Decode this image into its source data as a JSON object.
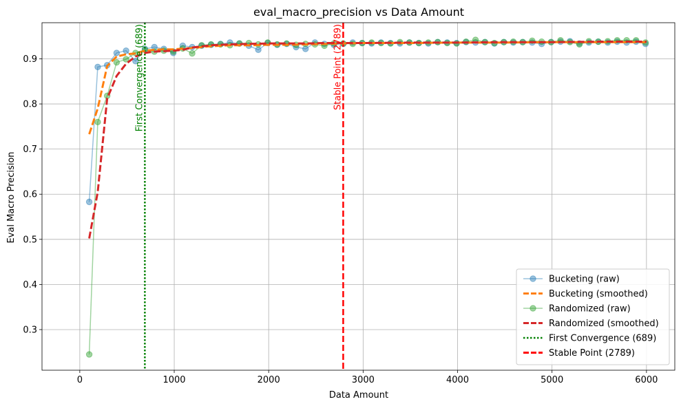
{
  "chart_data": {
    "type": "line",
    "title": "eval_macro_precision vs Data Amount",
    "xlabel": "Data Amount",
    "ylabel": "Eval Macro Precision",
    "xlim": [
      -400,
      6300
    ],
    "ylim": [
      0.21,
      0.98
    ],
    "xticks": [
      0,
      1000,
      2000,
      3000,
      4000,
      5000,
      6000
    ],
    "yticks": [
      0.3,
      0.4,
      0.5,
      0.6,
      0.7,
      0.8,
      0.9
    ],
    "xtick_labels": [
      "0",
      "1000",
      "2000",
      "3000",
      "4000",
      "5000",
      "6000"
    ],
    "ytick_labels": [
      "0.3",
      "0.4",
      "0.5",
      "0.6",
      "0.7",
      "0.8",
      "0.9"
    ],
    "grid": true,
    "legend_position": "lower-right",
    "series": [
      {
        "name": "Bucketing (raw)",
        "style": "line-marker",
        "color": "#1f77b4",
        "x": [
          100,
          190,
          290,
          390,
          490,
          590,
          690,
          790,
          890,
          990,
          1090,
          1190,
          1290,
          1390,
          1490,
          1590,
          1690,
          1790,
          1890,
          1990,
          2090,
          2190,
          2290,
          2390,
          2490,
          2590,
          2690,
          2790,
          2890,
          2990,
          3090,
          3190,
          3290,
          3390,
          3490,
          3590,
          3690,
          3790,
          3890,
          3990,
          4090,
          4190,
          4290,
          4390,
          4490,
          4590,
          4690,
          4790,
          4890,
          4990,
          5090,
          5190,
          5290,
          5390,
          5490,
          5590,
          5690,
          5790,
          5890,
          5990
        ],
        "y": [
          0.583,
          0.882,
          0.886,
          0.913,
          0.918,
          0.895,
          0.922,
          0.926,
          0.922,
          0.913,
          0.929,
          0.926,
          0.929,
          0.931,
          0.933,
          0.936,
          0.934,
          0.929,
          0.92,
          0.935,
          0.931,
          0.933,
          0.926,
          0.922,
          0.936,
          0.933,
          0.931,
          0.933,
          0.936,
          0.935,
          0.934,
          0.936,
          0.935,
          0.934,
          0.936,
          0.935,
          0.934,
          0.937,
          0.936,
          0.935,
          0.937,
          0.936,
          0.937,
          0.934,
          0.937,
          0.936,
          0.937,
          0.936,
          0.933,
          0.937,
          0.938,
          0.939,
          0.934,
          0.936,
          0.938,
          0.936,
          0.938,
          0.936,
          0.938,
          0.933
        ]
      },
      {
        "name": "Bucketing (smoothed)",
        "style": "dashed",
        "color": "#ff7f0e",
        "x": [
          100,
          190,
          290,
          390,
          490,
          590,
          690,
          790,
          890,
          990,
          1190,
          1390,
          1590,
          1790,
          1990,
          2190,
          2390,
          2590,
          2790,
          3000,
          3500,
          4000,
          4500,
          5000,
          5500,
          6000
        ],
        "y": [
          0.733,
          0.79,
          0.884,
          0.905,
          0.91,
          0.912,
          0.918,
          0.92,
          0.921,
          0.921,
          0.924,
          0.928,
          0.93,
          0.93,
          0.931,
          0.931,
          0.932,
          0.933,
          0.934,
          0.935,
          0.935,
          0.936,
          0.936,
          0.937,
          0.937,
          0.937
        ]
      },
      {
        "name": "Randomized (raw)",
        "style": "line-marker",
        "color": "#2ca02c",
        "x": [
          100,
          190,
          290,
          390,
          490,
          590,
          690,
          790,
          890,
          990,
          1090,
          1190,
          1290,
          1390,
          1490,
          1590,
          1690,
          1790,
          1890,
          1990,
          2090,
          2190,
          2290,
          2390,
          2490,
          2590,
          2690,
          2790,
          2890,
          2990,
          3090,
          3190,
          3290,
          3390,
          3490,
          3590,
          3690,
          3790,
          3890,
          3990,
          4090,
          4190,
          4290,
          4390,
          4490,
          4590,
          4690,
          4790,
          4890,
          4990,
          5090,
          5190,
          5290,
          5390,
          5490,
          5590,
          5690,
          5790,
          5890,
          5990
        ],
        "y": [
          0.245,
          0.76,
          0.818,
          0.892,
          0.899,
          0.913,
          0.92,
          0.916,
          0.918,
          0.916,
          0.923,
          0.912,
          0.93,
          0.932,
          0.932,
          0.93,
          0.934,
          0.935,
          0.932,
          0.936,
          0.932,
          0.934,
          0.931,
          0.933,
          0.932,
          0.929,
          0.934,
          0.934,
          0.933,
          0.935,
          0.936,
          0.935,
          0.934,
          0.937,
          0.936,
          0.935,
          0.936,
          0.937,
          0.935,
          0.934,
          0.938,
          0.942,
          0.937,
          0.935,
          0.937,
          0.938,
          0.937,
          0.94,
          0.938,
          0.937,
          0.941,
          0.937,
          0.932,
          0.939,
          0.938,
          0.939,
          0.941,
          0.941,
          0.941,
          0.936
        ]
      },
      {
        "name": "Randomized (smoothed)",
        "style": "dashed",
        "color": "#d62728",
        "x": [
          100,
          190,
          290,
          390,
          490,
          590,
          690,
          790,
          890,
          990,
          1090,
          1190,
          1390,
          1590,
          1790,
          1990,
          2190,
          2390,
          2590,
          2790,
          3000,
          3500,
          4000,
          4500,
          5000,
          5500,
          6000
        ],
        "y": [
          0.502,
          0.605,
          0.812,
          0.862,
          0.889,
          0.905,
          0.913,
          0.916,
          0.917,
          0.918,
          0.92,
          0.925,
          0.93,
          0.932,
          0.933,
          0.934,
          0.934,
          0.934,
          0.935,
          0.935,
          0.935,
          0.936,
          0.936,
          0.937,
          0.937,
          0.938,
          0.938
        ]
      }
    ],
    "vlines": [
      {
        "name": "First Convergence (689)",
        "x": 689,
        "style": "dotted",
        "color": "#008000"
      },
      {
        "name": "Stable Point (2789)",
        "x": 2789,
        "style": "dashed",
        "color": "#ff0000"
      }
    ],
    "legend": [
      {
        "label": "Bucketing (raw)",
        "color": "#1f77b4",
        "kind": "line-marker"
      },
      {
        "label": "Bucketing (smoothed)",
        "color": "#ff7f0e",
        "kind": "dashed"
      },
      {
        "label": "Randomized (raw)",
        "color": "#2ca02c",
        "kind": "line-marker"
      },
      {
        "label": "Randomized (smoothed)",
        "color": "#d62728",
        "kind": "dashed"
      },
      {
        "label": "First Convergence (689)",
        "color": "#008000",
        "kind": "dotted"
      },
      {
        "label": "Stable Point (2789)",
        "color": "#ff0000",
        "kind": "dashed-red"
      }
    ]
  }
}
